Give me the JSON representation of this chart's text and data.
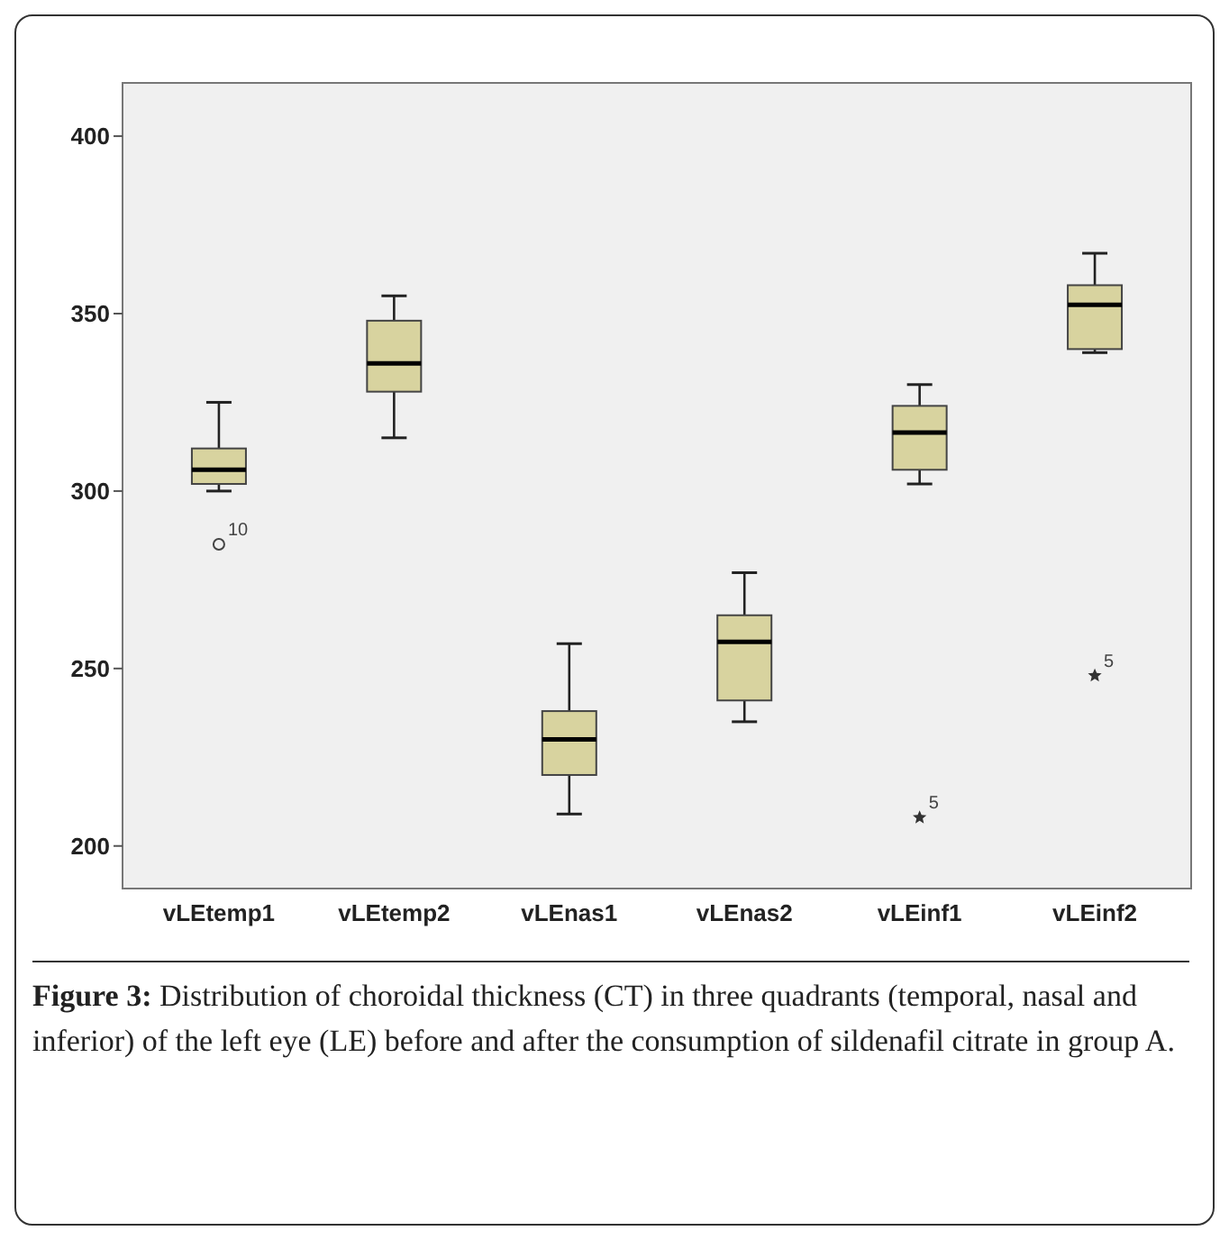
{
  "chart_data": {
    "type": "box",
    "categories": [
      "vLEtemp1",
      "vLEtemp2",
      "vLEnas1",
      "vLEnas2",
      "vLEinf1",
      "vLEinf2"
    ],
    "boxes": [
      {
        "low": 300,
        "q1": 302,
        "median": 306,
        "q3": 312,
        "high": 325
      },
      {
        "low": 315,
        "q1": 328,
        "median": 336,
        "q3": 348,
        "high": 355
      },
      {
        "low": 209,
        "q1": 220,
        "median": 230,
        "q3": 238,
        "high": 257
      },
      {
        "low": 235,
        "q1": 241,
        "median": 257.5,
        "q3": 265,
        "high": 277
      },
      {
        "low": 302,
        "q1": 306,
        "median": 316.5,
        "q3": 324,
        "high": 330
      },
      {
        "low": 339,
        "q1": 340,
        "median": 352.5,
        "q3": 358,
        "high": 367
      }
    ],
    "series": [
      {
        "type": "scatter",
        "marker": "circle",
        "color": "#444444",
        "x": [
          "vLEtemp1"
        ],
        "values": [
          285
        ]
      },
      {
        "type": "scatter",
        "marker": "star",
        "color": "#333333",
        "x": [
          "vLEinf1",
          "vLEinf2"
        ],
        "values": [
          208,
          248
        ]
      }
    ],
    "color": "#d8d39f",
    "ylim": [
      188,
      415
    ],
    "yticks": [
      200,
      250,
      300,
      350,
      400
    ],
    "grid": false,
    "annotations": [
      {
        "text": "10",
        "x": "vLEtemp1",
        "y": 285
      },
      {
        "text": "5",
        "x": "vLEinf1",
        "y": 208
      },
      {
        "text": "5",
        "x": "vLEinf2",
        "y": 248
      },
      "Figure 3: Distribution of choroidal thickness (CT) in three quadrants (temporal, nasal and inferior) of the left eye (LE) before and after the consumption of sildenafil citrate in group A."
    ]
  }
}
